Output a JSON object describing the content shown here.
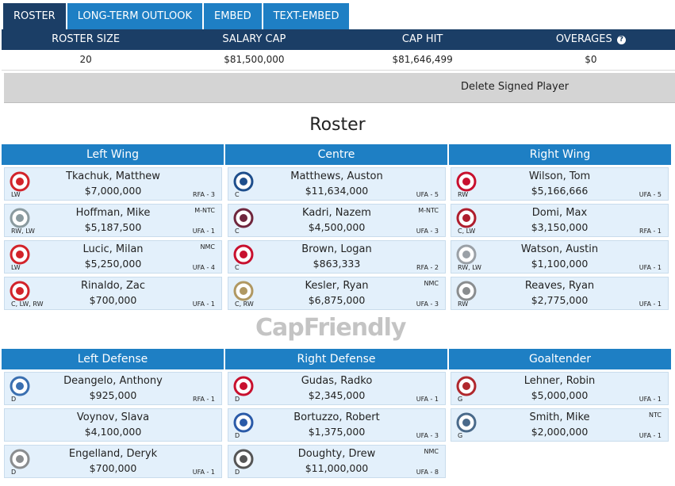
{
  "tabs": [
    {
      "label": "ROSTER",
      "active": true
    },
    {
      "label": "LONG-TERM OUTLOOK",
      "active": false
    },
    {
      "label": "EMBED",
      "active": false
    },
    {
      "label": "TEXT-EMBED",
      "active": false
    }
  ],
  "summary": {
    "headers": [
      "ROSTER SIZE",
      "SALARY CAP",
      "CAP HIT",
      "OVERAGES"
    ],
    "overages_help_icon": "?",
    "values": [
      "20",
      "$81,500,000",
      "$81,646,499",
      "$0"
    ]
  },
  "delete_label": "Delete Signed Player",
  "roster_title": "Roster",
  "watermark": {
    "part1": "Cap",
    "part2": "Friendly"
  },
  "colors": {
    "tab_active": "#1b3e66",
    "tab": "#1e7fc4",
    "card_bg": "#e3f0fb"
  },
  "forward_headers": [
    "Left Wing",
    "Centre",
    "Right Wing"
  ],
  "defense_headers": [
    "Left Defense",
    "Right Defense",
    "Goaltender"
  ],
  "forwards": [
    [
      {
        "name": "Tkachuk, Matthew",
        "salary": "$7,000,000",
        "pos": "LW",
        "contract": "RFA - 3",
        "clause": "",
        "team_icon": "calgary-flames-icon",
        "color": "#d2232a"
      },
      {
        "name": "Hoffman, Mike",
        "salary": "$5,187,500",
        "pos": "RW, LW",
        "contract": "UFA - 1",
        "clause": "M-NTC",
        "team_icon": "florida-panthers-icon",
        "color": "#8a9a9f"
      },
      {
        "name": "Lucic, Milan",
        "salary": "$5,250,000",
        "pos": "LW",
        "contract": "UFA - 4",
        "clause": "NMC",
        "team_icon": "calgary-flames-icon",
        "color": "#d2232a"
      },
      {
        "name": "Rinaldo, Zac",
        "salary": "$700,000",
        "pos": "C, LW, RW",
        "contract": "UFA - 1",
        "clause": "",
        "team_icon": "calgary-flames-icon",
        "color": "#d2232a"
      }
    ],
    [
      {
        "name": "Matthews, Auston",
        "salary": "$11,634,000",
        "pos": "C",
        "contract": "UFA - 5",
        "clause": "",
        "team_icon": "toronto-maple-leafs-icon",
        "color": "#1e4e8c"
      },
      {
        "name": "Kadri, Nazem",
        "salary": "$4,500,000",
        "pos": "C",
        "contract": "UFA - 3",
        "clause": "M-NTC",
        "team_icon": "colorado-avalanche-icon",
        "color": "#6f263d"
      },
      {
        "name": "Brown, Logan",
        "salary": "$863,333",
        "pos": "C",
        "contract": "RFA - 2",
        "clause": "",
        "team_icon": "ottawa-senators-icon",
        "color": "#c8102e"
      },
      {
        "name": "Kesler, Ryan",
        "salary": "$6,875,000",
        "pos": "C, RW",
        "contract": "UFA - 3",
        "clause": "NMC",
        "team_icon": "anaheim-ducks-icon",
        "color": "#b09862"
      }
    ],
    [
      {
        "name": "Wilson, Tom",
        "salary": "$5,166,666",
        "pos": "RW",
        "contract": "UFA - 5",
        "clause": "",
        "team_icon": "washington-capitals-icon",
        "color": "#c8102e"
      },
      {
        "name": "Domi, Max",
        "salary": "$3,150,000",
        "pos": "C, LW",
        "contract": "RFA - 1",
        "clause": "",
        "team_icon": "montreal-canadiens-icon",
        "color": "#af1e2d"
      },
      {
        "name": "Watson, Austin",
        "salary": "$1,100,000",
        "pos": "RW, LW",
        "contract": "UFA - 1",
        "clause": "",
        "team_icon": "nashville-predators-icon",
        "color": "#9aa0a6"
      },
      {
        "name": "Reaves, Ryan",
        "salary": "$2,775,000",
        "pos": "RW",
        "contract": "UFA - 1",
        "clause": "",
        "team_icon": "vegas-golden-knights-icon",
        "color": "#8a8d8f"
      }
    ]
  ],
  "defense": [
    [
      {
        "name": "Deangelo, Anthony",
        "salary": "$925,000",
        "pos": "D",
        "contract": "RFA - 1",
        "clause": "",
        "team_icon": "new-york-rangers-icon",
        "color": "#3a6fb0"
      },
      {
        "name": "Voynov, Slava",
        "salary": "$4,100,000",
        "pos": "",
        "contract": "",
        "clause": "",
        "team_icon": "",
        "color": ""
      },
      {
        "name": "Engelland, Deryk",
        "salary": "$700,000",
        "pos": "D",
        "contract": "UFA - 1",
        "clause": "",
        "team_icon": "vegas-golden-knights-icon",
        "color": "#8a8d8f"
      }
    ],
    [
      {
        "name": "Gudas, Radko",
        "salary": "$2,345,000",
        "pos": "D",
        "contract": "UFA - 1",
        "clause": "",
        "team_icon": "washington-capitals-icon",
        "color": "#c8102e"
      },
      {
        "name": "Bortuzzo, Robert",
        "salary": "$1,375,000",
        "pos": "D",
        "contract": "UFA - 3",
        "clause": "",
        "team_icon": "st-louis-blues-icon",
        "color": "#2a5aa8"
      },
      {
        "name": "Doughty, Drew",
        "salary": "$11,000,000",
        "pos": "D",
        "contract": "UFA - 8",
        "clause": "NMC",
        "team_icon": "los-angeles-kings-icon",
        "color": "#555555"
      }
    ],
    [
      {
        "name": "Lehner, Robin",
        "salary": "$5,000,000",
        "pos": "G",
        "contract": "UFA - 1",
        "clause": "",
        "team_icon": "chicago-blackhawks-icon",
        "color": "#b0282d"
      },
      {
        "name": "Smith, Mike",
        "salary": "$2,000,000",
        "pos": "G",
        "contract": "UFA - 1",
        "clause": "NTC",
        "team_icon": "edmonton-oilers-icon",
        "color": "#4a6a8a"
      }
    ]
  ]
}
